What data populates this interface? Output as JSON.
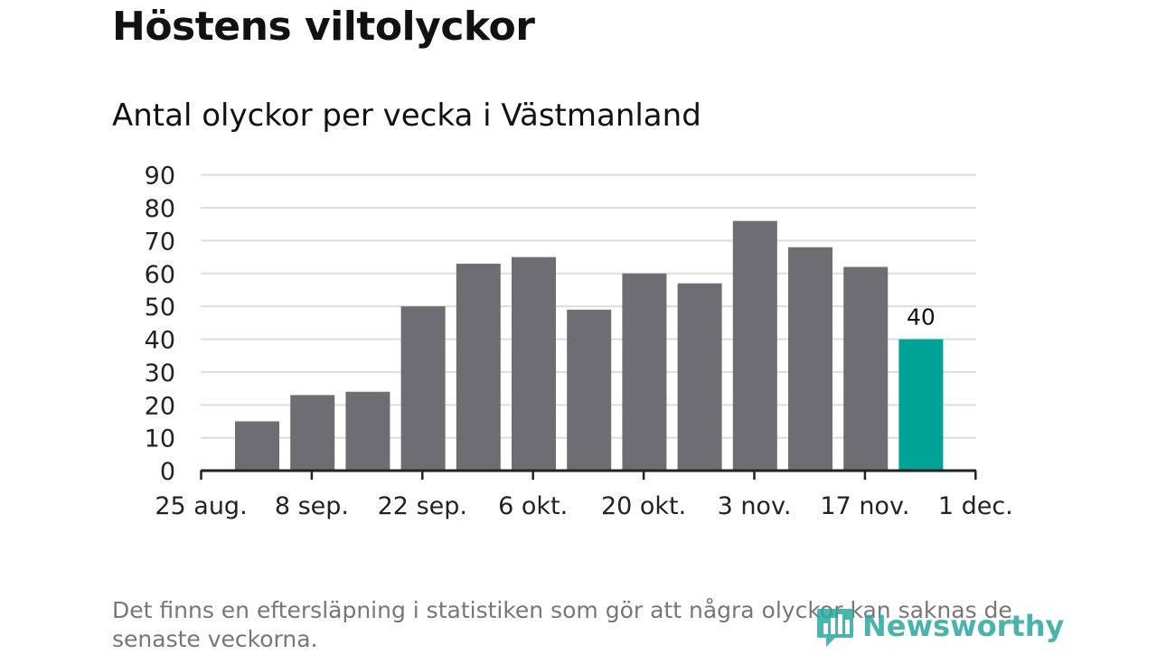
{
  "header": {
    "title": "Höstens viltolyckor",
    "subtitle": "Antal olyckor per vecka i Västmanland"
  },
  "footer": {
    "note": "Det finns en eftersläpning i statistiken som gör att några olyckor kan saknas de senaste veckorna.",
    "logo_text": "Newsworthy"
  },
  "colors": {
    "bar": "#6e6d72",
    "highlight": "#00a396",
    "grid": "#dddddd",
    "axis": "#222222",
    "logo": "#2aa89d"
  },
  "chart_data": {
    "type": "bar",
    "title": "Antal olyckor per vecka i Västmanland",
    "xlabel": "",
    "ylabel": "",
    "ylim": [
      0,
      90
    ],
    "yticks": [
      0,
      10,
      20,
      30,
      40,
      50,
      60,
      70,
      80,
      90
    ],
    "x_tick_labels": [
      "25 aug.",
      "8 sep.",
      "22 sep.",
      "6 okt.",
      "20 okt.",
      "3 nov.",
      "17 nov.",
      "1 dec."
    ],
    "categories": [
      "2019-08-26",
      "2019-09-02",
      "2019-09-09",
      "2019-09-16",
      "2019-09-23",
      "2019-09-30",
      "2019-10-07",
      "2019-10-14",
      "2019-10-21",
      "2019-10-28",
      "2019-11-04",
      "2019-11-11",
      "2019-11-18"
    ],
    "values": [
      15,
      23,
      24,
      50,
      63,
      65,
      49,
      60,
      57,
      76,
      68,
      62,
      40
    ],
    "highlight_index": 12,
    "data_labels": [
      {
        "index": 12,
        "text": "40"
      }
    ],
    "grid": true,
    "legend": "none"
  }
}
